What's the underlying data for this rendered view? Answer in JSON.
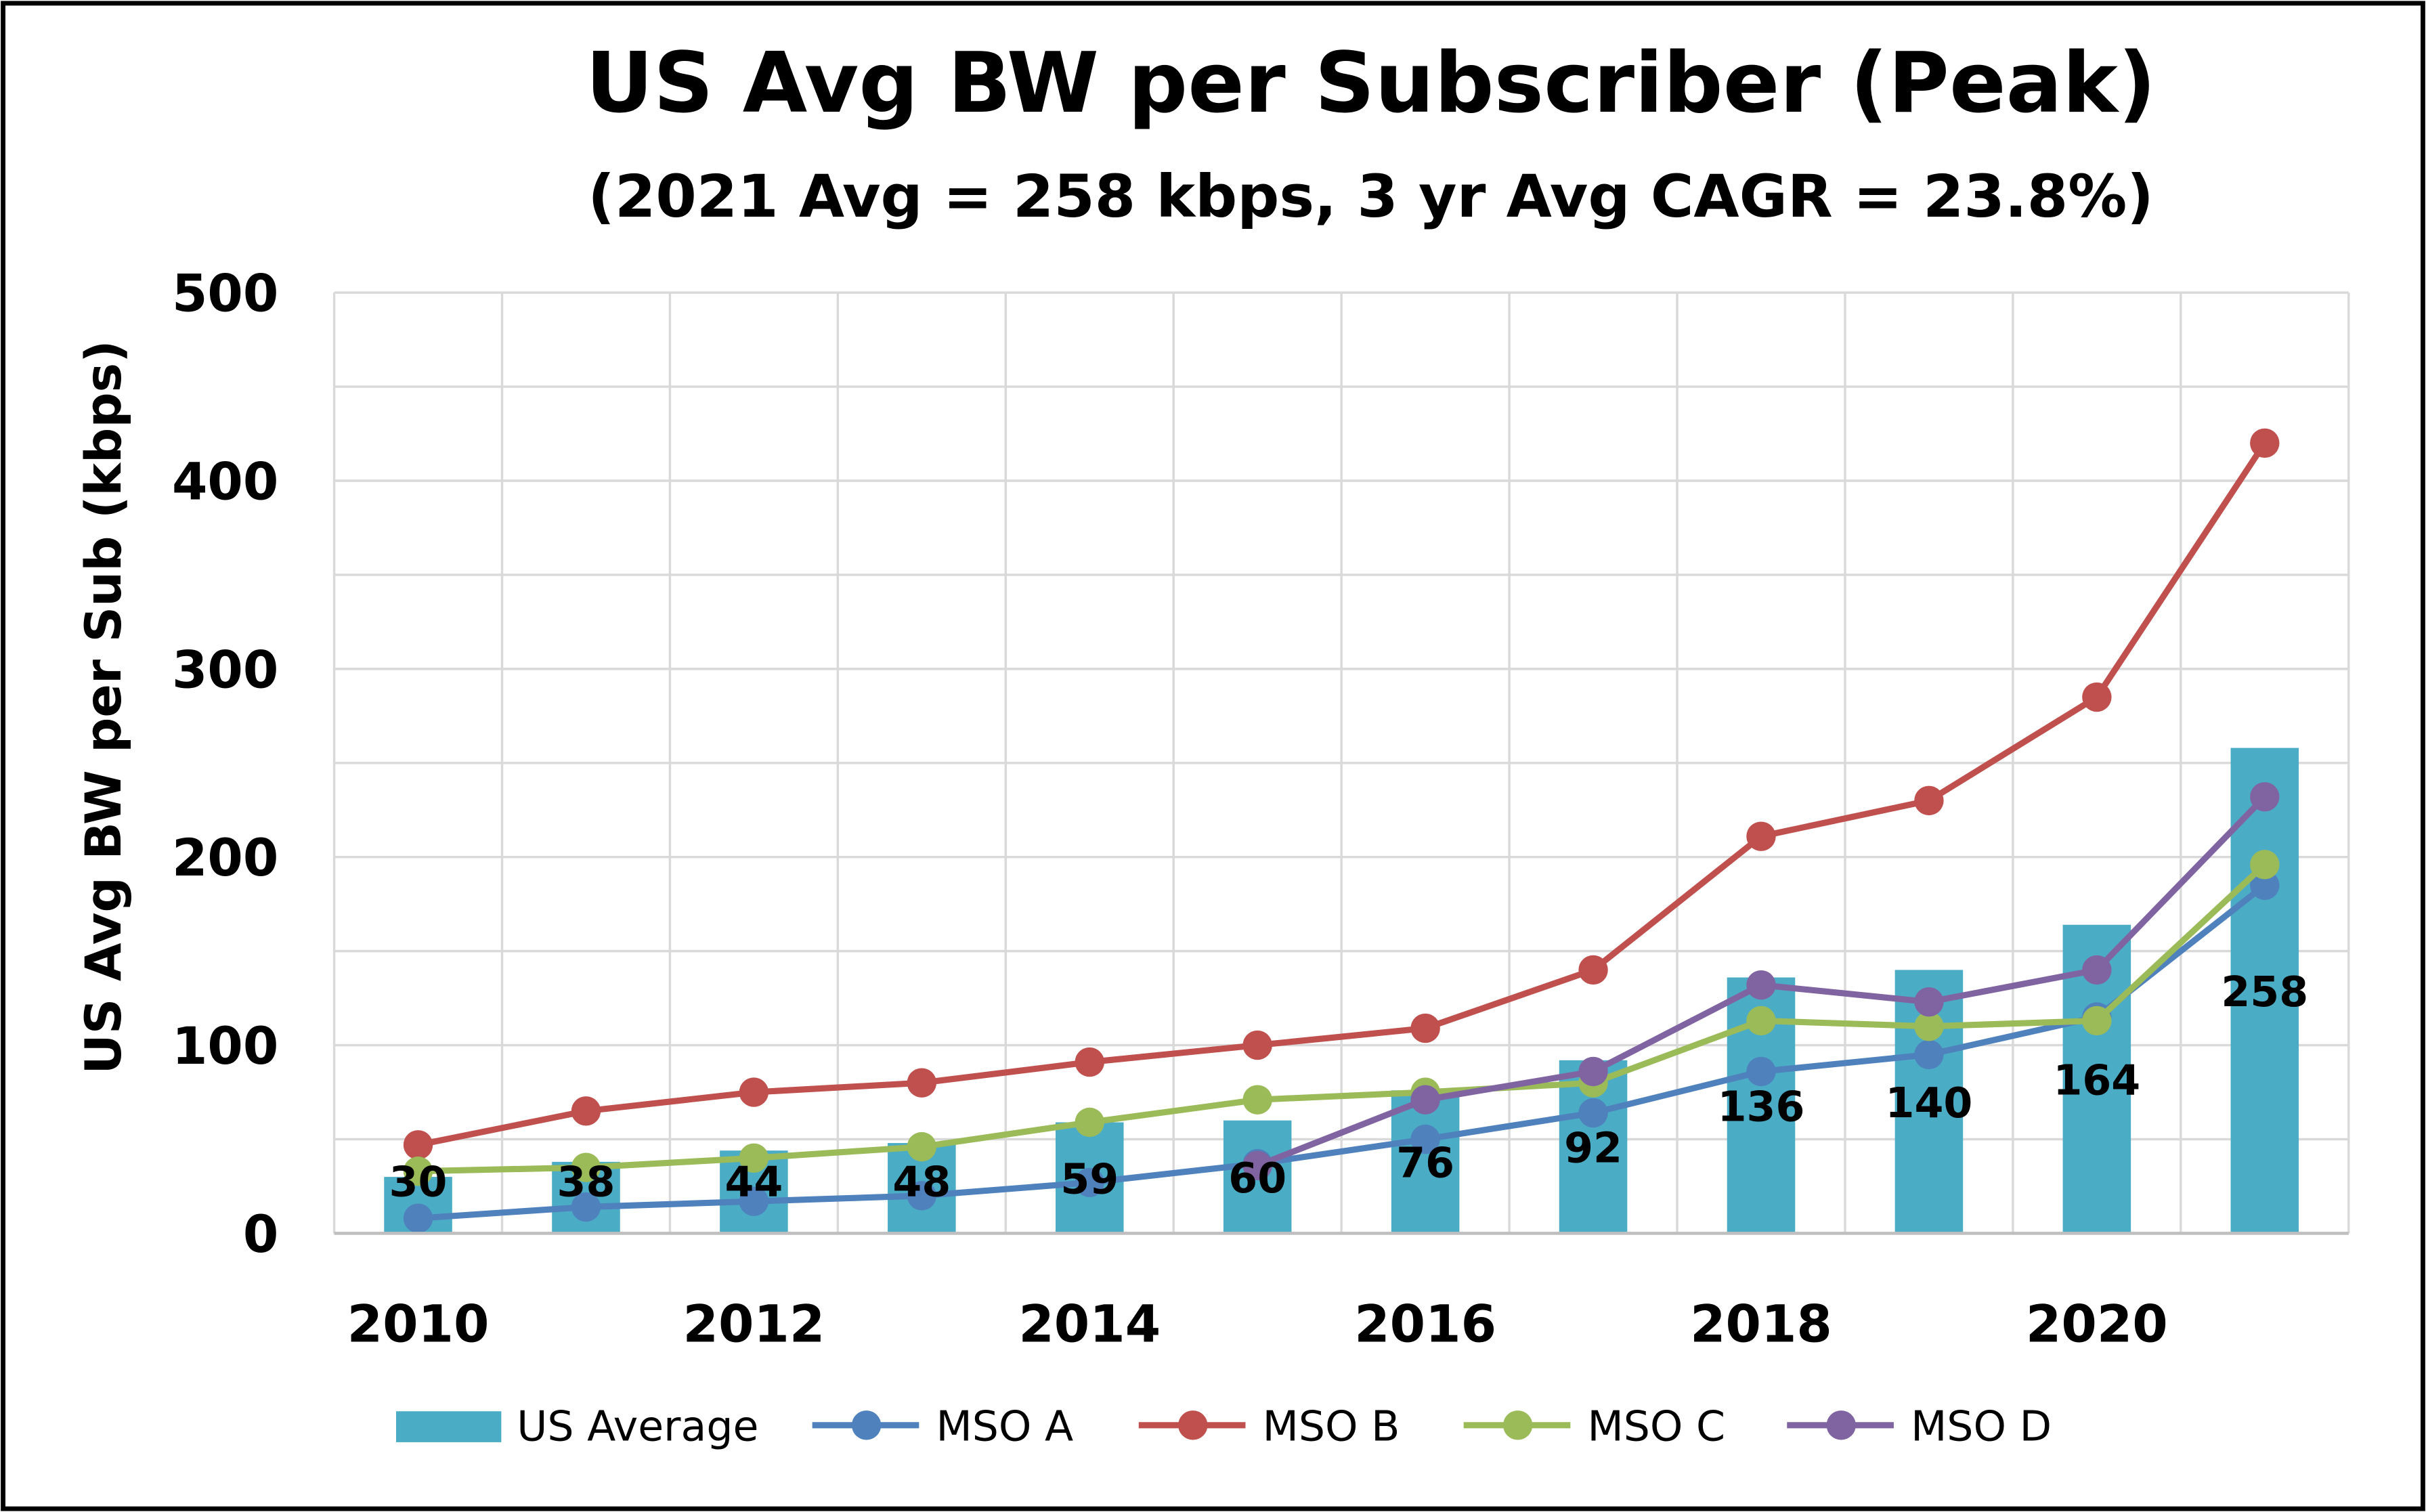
{
  "chart_data": {
    "type": "bar+line",
    "title": "US Avg BW per Subscriber (Peak)",
    "subtitle": "(2021 Avg = 258 kbps, 3 yr Avg CAGR = 23.8%)",
    "xlabel": "",
    "ylabel": "US Avg BW per Sub (kbps)",
    "ylim": [
      0,
      500
    ],
    "yticks": [
      "0",
      "100",
      "200",
      "300",
      "400",
      "500"
    ],
    "x": [
      2010,
      2011,
      2012,
      2013,
      2014,
      2015,
      2016,
      2017,
      2018,
      2019,
      2020,
      2021
    ],
    "xtick_labels": [
      "2010",
      "2012",
      "2014",
      "2016",
      "2018",
      "2020"
    ],
    "grid": true,
    "legend_position": "bottom",
    "bar_series": {
      "name": "US Average",
      "color": "#4BACC6",
      "values": [
        30,
        38,
        44,
        48,
        59,
        60,
        76,
        92,
        136,
        140,
        164,
        258
      ],
      "data_labels": [
        "30",
        "38",
        "44",
        "48",
        "59",
        "60",
        "76",
        "92",
        "136",
        "140",
        "164",
        "258"
      ]
    },
    "series": [
      {
        "name": "MSO A",
        "color": "#4F81BD",
        "values": [
          8,
          14,
          17,
          20,
          27,
          37,
          50,
          64,
          86,
          95,
          115,
          185
        ]
      },
      {
        "name": "MSO B",
        "color": "#C0504D",
        "values": [
          47,
          65,
          75,
          80,
          91,
          100,
          109,
          140,
          211,
          230,
          285,
          420
        ]
      },
      {
        "name": "MSO C",
        "color": "#9BBB59",
        "values": [
          33,
          35,
          40,
          46,
          59,
          71,
          75,
          80,
          113,
          110,
          113,
          196
        ]
      },
      {
        "name": "MSO D",
        "color": "#8064A2",
        "values": [
          null,
          null,
          null,
          null,
          null,
          36,
          71,
          86,
          132,
          123,
          140,
          232
        ]
      }
    ]
  }
}
